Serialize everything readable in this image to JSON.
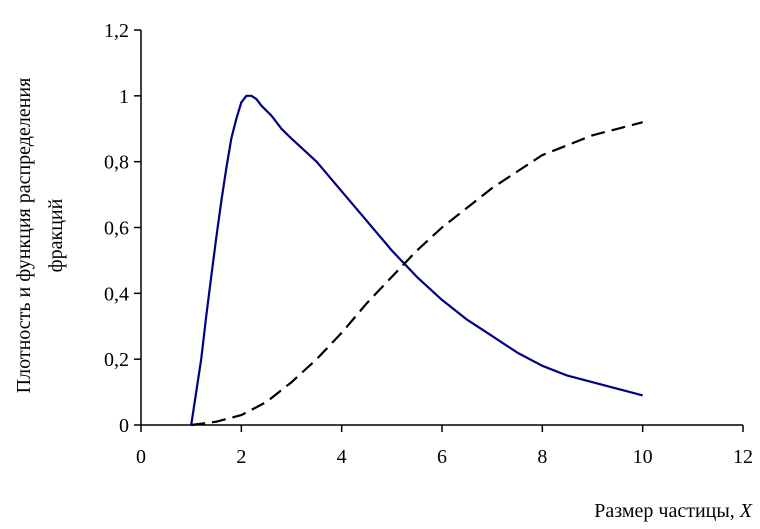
{
  "chart_data": {
    "type": "line",
    "xlabel": "Размер частицы, X",
    "xlabel_prefix": "Размер частицы, ",
    "xlabel_var": "X",
    "ylabel_lines": [
      "Плотность и функция распределения",
      "фракций"
    ],
    "xlim": [
      0,
      12
    ],
    "ylim": [
      0,
      1.2
    ],
    "xticks": [
      0,
      2,
      4,
      6,
      8,
      10,
      12
    ],
    "xtick_labels": [
      "0",
      "2",
      "4",
      "6",
      "8",
      "10",
      "12"
    ],
    "yticks": [
      0,
      0.2,
      0.4,
      0.6,
      0.8,
      1,
      1.2
    ],
    "ytick_labels": [
      "0",
      "0,2",
      "0,4",
      "0,6",
      "0,8",
      "1",
      "1,2"
    ],
    "grid": false,
    "legend": "none",
    "series": [
      {
        "style": "solid",
        "color": "#000080",
        "points": [
          [
            1.0,
            0.0
          ],
          [
            1.1,
            0.1
          ],
          [
            1.2,
            0.2
          ],
          [
            1.3,
            0.33
          ],
          [
            1.4,
            0.45
          ],
          [
            1.5,
            0.57
          ],
          [
            1.6,
            0.68
          ],
          [
            1.7,
            0.78
          ],
          [
            1.8,
            0.87
          ],
          [
            1.9,
            0.93
          ],
          [
            2.0,
            0.98
          ],
          [
            2.1,
            1.0
          ],
          [
            2.2,
            1.0
          ],
          [
            2.3,
            0.99
          ],
          [
            2.4,
            0.97
          ],
          [
            2.6,
            0.94
          ],
          [
            2.8,
            0.9
          ],
          [
            3.0,
            0.87
          ],
          [
            3.5,
            0.8
          ],
          [
            4.0,
            0.71
          ],
          [
            4.5,
            0.62
          ],
          [
            5.0,
            0.53
          ],
          [
            5.5,
            0.45
          ],
          [
            6.0,
            0.38
          ],
          [
            6.5,
            0.32
          ],
          [
            7.0,
            0.27
          ],
          [
            7.5,
            0.22
          ],
          [
            8.0,
            0.18
          ],
          [
            8.5,
            0.15
          ],
          [
            9.0,
            0.13
          ],
          [
            9.5,
            0.11
          ],
          [
            10.0,
            0.09
          ]
        ]
      },
      {
        "style": "dashed",
        "color": "#000000",
        "points": [
          [
            1.0,
            0.0
          ],
          [
            1.5,
            0.01
          ],
          [
            2.0,
            0.03
          ],
          [
            2.5,
            0.07
          ],
          [
            3.0,
            0.13
          ],
          [
            3.5,
            0.2
          ],
          [
            4.0,
            0.28
          ],
          [
            4.5,
            0.37
          ],
          [
            5.0,
            0.45
          ],
          [
            5.5,
            0.53
          ],
          [
            6.0,
            0.6
          ],
          [
            6.5,
            0.66
          ],
          [
            7.0,
            0.72
          ],
          [
            7.5,
            0.77
          ],
          [
            8.0,
            0.82
          ],
          [
            8.5,
            0.85
          ],
          [
            9.0,
            0.88
          ],
          [
            9.5,
            0.9
          ],
          [
            10.0,
            0.92
          ]
        ]
      }
    ]
  }
}
